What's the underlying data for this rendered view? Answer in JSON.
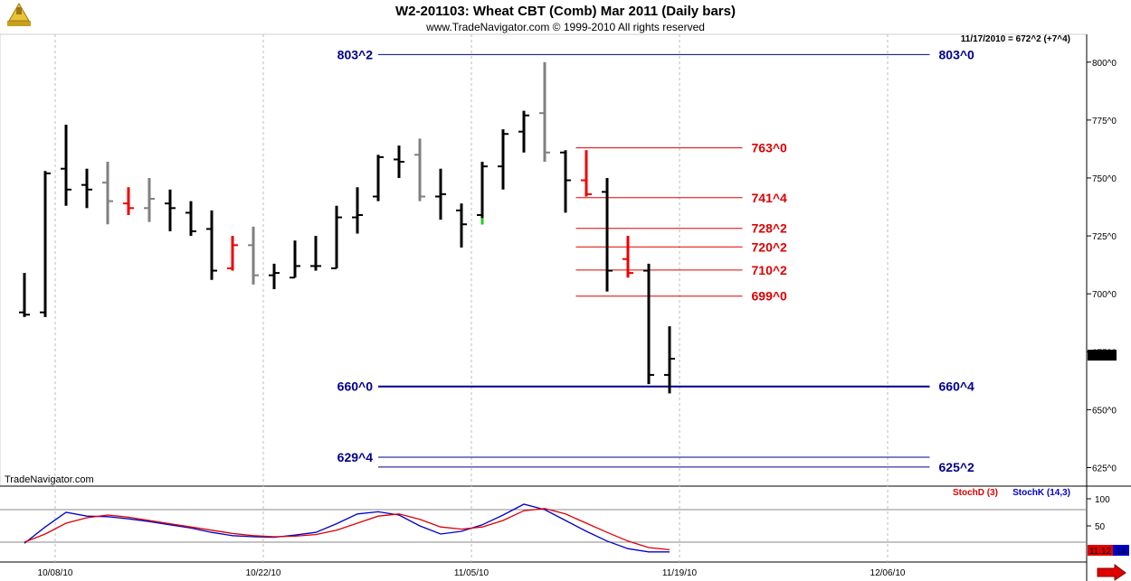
{
  "header": {
    "title": "W2-201103:  Wheat CBT (Comb) Mar 2011  (Daily bars)",
    "subtitle": "www.TradeNavigator.com © 1999-2010 All rights reserved",
    "quote": "11/17/2010 = 672^2 (+7^4)",
    "watermark": "TradeNavigator.com",
    "current_price_label": "672^2",
    "stoch_value_label": "11.12",
    "stoch_value_label2": "14"
  },
  "colors": {
    "up_bar": "#000000",
    "down_bar": "#808080",
    "red_bar": "#ee0000",
    "green_bar": "#22cc22",
    "blue_level": "#00008b",
    "red_level": "#dd0000",
    "stoch_d": "#dd0000",
    "stoch_k": "#0000cc"
  },
  "chart_data": [
    {
      "type": "ohlc",
      "title": "W2-201103:  Wheat CBT (Comb) Mar 2011  (Daily bars)",
      "x_tick_labels": [
        "10/08/10",
        "10/22/10",
        "11/05/10",
        "11/19/10",
        "12/06/10"
      ],
      "x_tick_index": [
        1,
        11,
        21,
        31,
        41
      ],
      "y_tick_labels": [
        "625^0",
        "650^0",
        "675^0",
        "700^0",
        "725^0",
        "750^0",
        "775^0",
        "800^0"
      ],
      "y_tick_values": [
        625,
        650,
        675,
        700,
        725,
        750,
        775,
        800
      ],
      "ylim": [
        617,
        812
      ],
      "bars": [
        {
          "o": 692,
          "h": 709,
          "l": 690,
          "c": 691,
          "color": "black"
        },
        {
          "o": 692,
          "h": 753,
          "l": 690,
          "c": 752,
          "color": "black"
        },
        {
          "o": 754,
          "h": 773,
          "l": 738,
          "c": 745,
          "color": "black"
        },
        {
          "o": 747,
          "h": 754,
          "l": 737,
          "c": 745,
          "color": "black"
        },
        {
          "o": 748,
          "h": 757,
          "l": 730,
          "c": 740,
          "color": "gray"
        },
        {
          "o": 739,
          "h": 746,
          "l": 734,
          "c": 737,
          "color": "red"
        },
        {
          "o": 737,
          "h": 750,
          "l": 731,
          "c": 741,
          "color": "gray"
        },
        {
          "o": 739,
          "h": 745,
          "l": 727,
          "c": 737,
          "color": "black"
        },
        {
          "o": 735,
          "h": 740,
          "l": 725,
          "c": 727,
          "color": "black"
        },
        {
          "o": 728,
          "h": 736,
          "l": 706,
          "c": 710,
          "color": "black"
        },
        {
          "o": 711,
          "h": 725,
          "l": 710,
          "c": 721,
          "color": "red"
        },
        {
          "o": 721,
          "h": 729,
          "l": 704,
          "c": 708,
          "color": "gray"
        },
        {
          "o": 708,
          "h": 713,
          "l": 702,
          "c": 709,
          "color": "black"
        },
        {
          "o": 707,
          "h": 723,
          "l": 707,
          "c": 712,
          "color": "black"
        },
        {
          "o": 712,
          "h": 725,
          "l": 710,
          "c": 712,
          "color": "black"
        },
        {
          "o": 711,
          "h": 738,
          "l": 711,
          "c": 733,
          "color": "black"
        },
        {
          "o": 733,
          "h": 746,
          "l": 726,
          "c": 734,
          "color": "black"
        },
        {
          "o": 742,
          "h": 760,
          "l": 740,
          "c": 759,
          "color": "black"
        },
        {
          "o": 758,
          "h": 764,
          "l": 750,
          "c": 757,
          "color": "black"
        },
        {
          "o": 760,
          "h": 767,
          "l": 740,
          "c": 742,
          "color": "gray"
        },
        {
          "o": 742,
          "h": 754,
          "l": 732,
          "c": 743,
          "color": "black"
        },
        {
          "o": 736,
          "h": 739,
          "l": 720,
          "c": 730,
          "color": "black"
        },
        {
          "o": 734,
          "h": 757,
          "l": 730,
          "c": 755,
          "color": "black",
          "green_tail": true
        },
        {
          "o": 755,
          "h": 771,
          "l": 745,
          "c": 769,
          "color": "black"
        },
        {
          "o": 770,
          "h": 779,
          "l": 761,
          "c": 777,
          "color": "black"
        },
        {
          "o": 778,
          "h": 800,
          "l": 757,
          "c": 761,
          "color": "gray"
        },
        {
          "o": 761,
          "h": 762,
          "l": 735,
          "c": 749,
          "color": "black"
        },
        {
          "o": 749,
          "h": 762,
          "l": 742,
          "c": 743,
          "color": "red"
        },
        {
          "o": 744,
          "h": 750,
          "l": 701,
          "c": 710,
          "color": "black"
        },
        {
          "o": 715,
          "h": 725,
          "l": 707,
          "c": 709,
          "color": "red"
        },
        {
          "o": 710,
          "h": 713,
          "l": 661,
          "c": 665,
          "color": "black"
        },
        {
          "o": 665,
          "h": 686,
          "l": 657,
          "c": 672,
          "color": "black"
        }
      ],
      "levels": [
        {
          "y": 803.25,
          "left": "803^2",
          "right": "803^0",
          "color": "blue",
          "x0": 17,
          "x1": 43.5
        },
        {
          "y": 763.0,
          "right": "763^0",
          "color": "red",
          "x0": 26.5,
          "x1": 34.5
        },
        {
          "y": 741.5,
          "right": "741^4",
          "color": "red",
          "x0": 26.5,
          "x1": 34.5
        },
        {
          "y": 728.25,
          "right": "728^2",
          "color": "red",
          "x0": 26.5,
          "x1": 34.5
        },
        {
          "y": 720.25,
          "right": "720^2",
          "color": "red",
          "x0": 26.5,
          "x1": 34.5
        },
        {
          "y": 710.25,
          "right": "710^2",
          "color": "red",
          "x0": 26.5,
          "x1": 34.5
        },
        {
          "y": 699.0,
          "right": "699^0",
          "color": "red",
          "x0": 26.5,
          "x1": 34.5
        },
        {
          "y": 660.0,
          "left": "660^0",
          "right": "660^4",
          "color": "blue",
          "x0": 17,
          "x1": 43.5,
          "thick": true
        },
        {
          "y": 629.5,
          "left": "629^4",
          "color": "blue",
          "x0": 17,
          "x1": 43.5
        },
        {
          "y": 625.25,
          "right": "625^2",
          "color": "blue",
          "x0": 17,
          "x1": 43.5
        }
      ]
    },
    {
      "type": "line",
      "title": "",
      "legend": [
        "StochD (3)",
        "StochK (14,3)"
      ],
      "y_tick_labels": [
        "100",
        "50"
      ],
      "y_tick_values": [
        100,
        50
      ],
      "ylim": [
        -20,
        120
      ],
      "reference_lines": [
        80,
        20
      ],
      "x": [
        0,
        1,
        2,
        3,
        4,
        5,
        6,
        7,
        8,
        9,
        10,
        11,
        12,
        13,
        14,
        15,
        16,
        17,
        18,
        19,
        20,
        21,
        22,
        23,
        24,
        25,
        26,
        27,
        28,
        29,
        30,
        31
      ],
      "series": [
        {
          "name": "StochK (14,3)",
          "color": "blue",
          "values": [
            18,
            48,
            75,
            68,
            67,
            63,
            58,
            52,
            46,
            38,
            32,
            30,
            29,
            33,
            38,
            54,
            72,
            76,
            70,
            50,
            35,
            40,
            52,
            70,
            90,
            80,
            60,
            40,
            22,
            8,
            2,
            2
          ]
        },
        {
          "name": "StochD (3)",
          "color": "red",
          "values": [
            20,
            35,
            55,
            65,
            70,
            66,
            60,
            54,
            48,
            42,
            36,
            32,
            30,
            31,
            34,
            42,
            55,
            68,
            72,
            62,
            48,
            44,
            48,
            60,
            78,
            82,
            72,
            55,
            38,
            22,
            10,
            6
          ]
        }
      ]
    }
  ]
}
